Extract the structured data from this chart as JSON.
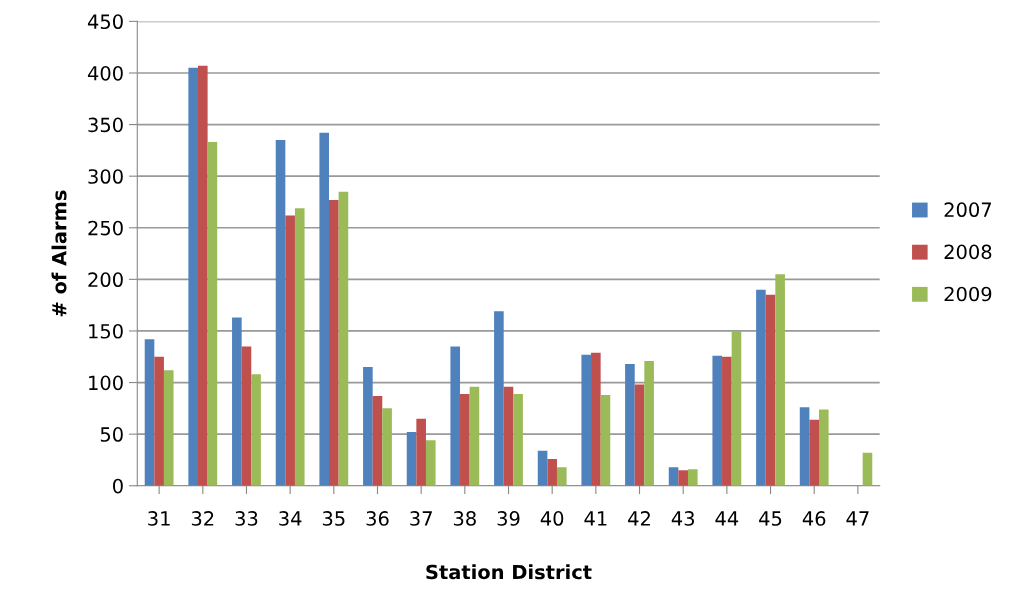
{
  "chart_data": {
    "type": "bar",
    "xlabel": "Station District",
    "ylabel": "# of Alarms",
    "categories": [
      "31",
      "32",
      "33",
      "34",
      "35",
      "36",
      "37",
      "38",
      "39",
      "40",
      "41",
      "42",
      "43",
      "44",
      "45",
      "46",
      "47"
    ],
    "series": [
      {
        "name": "2007",
        "color": "#4f81bd",
        "values": [
          142,
          405,
          163,
          335,
          342,
          115,
          52,
          135,
          169,
          34,
          127,
          118,
          18,
          126,
          190,
          76,
          null
        ]
      },
      {
        "name": "2008",
        "color": "#c0504d",
        "values": [
          125,
          407,
          135,
          262,
          277,
          87,
          65,
          89,
          96,
          26,
          129,
          98,
          15,
          125,
          185,
          64,
          null
        ]
      },
      {
        "name": "2009",
        "color": "#9bbb59",
        "values": [
          112,
          333,
          108,
          269,
          285,
          75,
          44,
          96,
          89,
          18,
          88,
          121,
          16,
          150,
          205,
          74,
          32
        ]
      }
    ],
    "ylim": [
      0,
      450
    ],
    "yticks": [
      0,
      50,
      100,
      150,
      200,
      250,
      300,
      350,
      400,
      450
    ],
    "grid": "y",
    "legend": "right"
  }
}
